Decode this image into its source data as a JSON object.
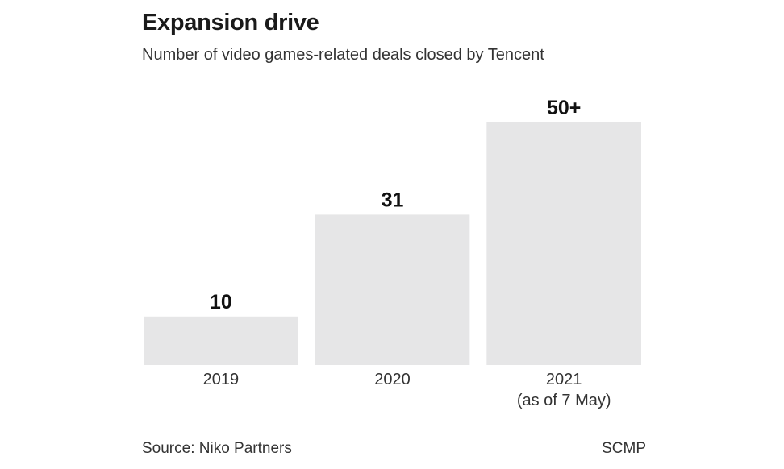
{
  "chart_data": {
    "type": "bar",
    "title": "Expansion drive",
    "subtitle": "Number of video games-related deals closed by Tencent",
    "categories": [
      "2019",
      "2020",
      "2021\n(as of 7 May)"
    ],
    "values": [
      10,
      31,
      50
    ],
    "data_labels": [
      "10",
      "31",
      "50+"
    ],
    "xlabel": "",
    "ylabel": "",
    "ylim": [
      0,
      50
    ],
    "grid": false,
    "bar_color": "#e6e6e7"
  },
  "footer": {
    "source": "Source: Niko Partners",
    "credit": "SCMP"
  }
}
